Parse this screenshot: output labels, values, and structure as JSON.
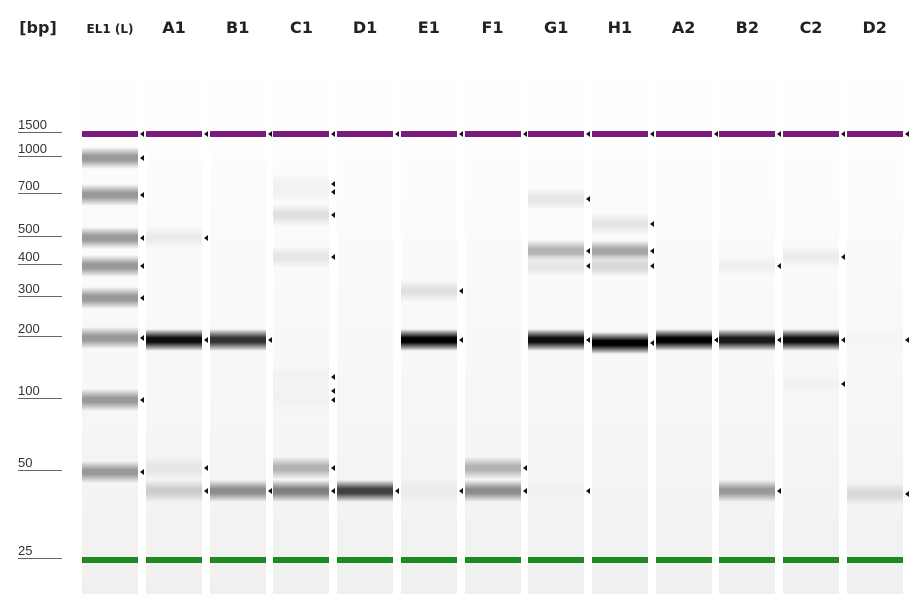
{
  "unit_label": "[bp]",
  "colors": {
    "upper_marker": "#7a1a7a",
    "lower_marker": "#1f8a1f",
    "band": "#000000"
  },
  "ladder": {
    "name": "EL1 (L)",
    "sizes": [
      1500,
      1000,
      700,
      500,
      400,
      300,
      200,
      100,
      50,
      25
    ]
  },
  "lanes": [
    {
      "name": "A1",
      "bands": [
        {
          "bp": 195,
          "intensity": 0.95
        },
        {
          "bp": 500,
          "intensity": 0.08
        },
        {
          "bp": 52,
          "intensity": 0.1
        },
        {
          "bp": 43,
          "intensity": 0.2
        }
      ]
    },
    {
      "name": "B1",
      "bands": [
        {
          "bp": 195,
          "intensity": 0.8
        },
        {
          "bp": 43,
          "intensity": 0.45
        }
      ]
    },
    {
      "name": "C1",
      "bands": [
        {
          "bp": 780,
          "intensity": 0.05
        },
        {
          "bp": 720,
          "intensity": 0.05
        },
        {
          "bp": 600,
          "intensity": 0.12
        },
        {
          "bp": 430,
          "intensity": 0.1
        },
        {
          "bp": 130,
          "intensity": 0.05
        },
        {
          "bp": 110,
          "intensity": 0.05
        },
        {
          "bp": 100,
          "intensity": 0.05
        },
        {
          "bp": 52,
          "intensity": 0.3
        },
        {
          "bp": 43,
          "intensity": 0.5
        }
      ]
    },
    {
      "name": "D1",
      "bands": [
        {
          "bp": 43,
          "intensity": 0.75
        }
      ]
    },
    {
      "name": "E1",
      "bands": [
        {
          "bp": 195,
          "intensity": 1.0
        },
        {
          "bp": 320,
          "intensity": 0.12
        },
        {
          "bp": 43,
          "intensity": 0.08
        }
      ]
    },
    {
      "name": "F1",
      "bands": [
        {
          "bp": 52,
          "intensity": 0.3
        },
        {
          "bp": 43,
          "intensity": 0.45
        }
      ]
    },
    {
      "name": "G1",
      "bands": [
        {
          "bp": 195,
          "intensity": 0.95
        },
        {
          "bp": 680,
          "intensity": 0.1
        },
        {
          "bp": 450,
          "intensity": 0.3
        },
        {
          "bp": 400,
          "intensity": 0.1
        },
        {
          "bp": 43,
          "intensity": 0.06
        }
      ]
    },
    {
      "name": "H1",
      "bands": [
        {
          "bp": 190,
          "intensity": 1.0
        },
        {
          "bp": 560,
          "intensity": 0.1
        },
        {
          "bp": 450,
          "intensity": 0.35
        },
        {
          "bp": 400,
          "intensity": 0.15
        }
      ]
    },
    {
      "name": "A2",
      "bands": [
        {
          "bp": 195,
          "intensity": 1.0
        }
      ]
    },
    {
      "name": "B2",
      "bands": [
        {
          "bp": 195,
          "intensity": 0.9
        },
        {
          "bp": 400,
          "intensity": 0.06
        },
        {
          "bp": 43,
          "intensity": 0.4
        }
      ]
    },
    {
      "name": "C2",
      "bands": [
        {
          "bp": 195,
          "intensity": 0.95
        },
        {
          "bp": 430,
          "intensity": 0.08
        },
        {
          "bp": 120,
          "intensity": 0.05
        }
      ]
    },
    {
      "name": "D2",
      "bands": [
        {
          "bp": 195,
          "intensity": 0.04
        },
        {
          "bp": 42,
          "intensity": 0.15
        }
      ]
    }
  ]
}
